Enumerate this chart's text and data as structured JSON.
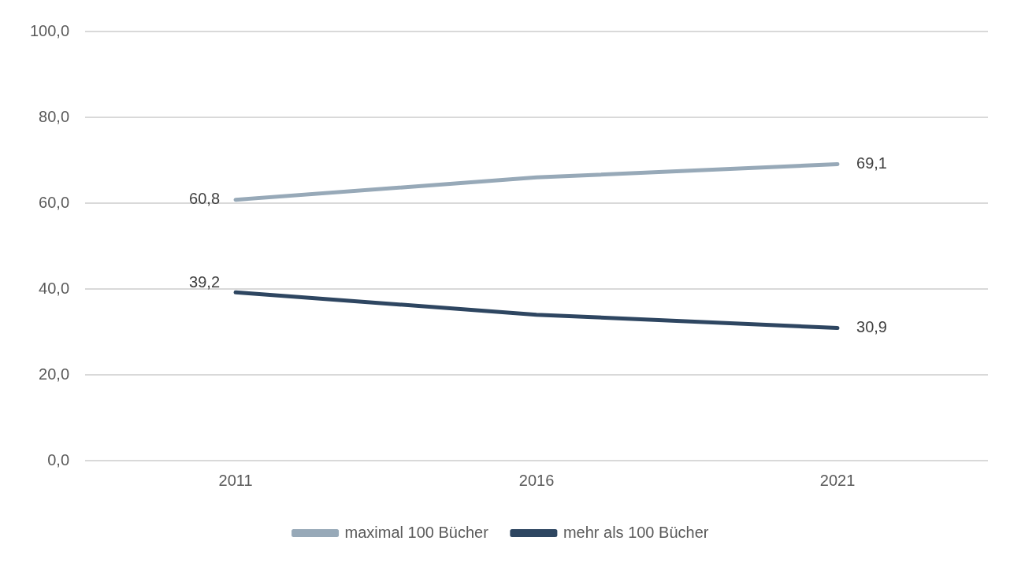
{
  "chart_data": {
    "type": "line",
    "categories": [
      "2011",
      "2016",
      "2021"
    ],
    "series": [
      {
        "name": "maximal 100 Bücher",
        "color": "#97a9b8",
        "values": [
          60.8,
          66.0,
          69.1
        ],
        "value_labels": [
          "60,8",
          null,
          "69,1"
        ]
      },
      {
        "name": "mehr als 100 Bücher",
        "color": "#2e4661",
        "values": [
          39.2,
          34.0,
          30.9
        ],
        "value_labels": [
          "39,2",
          null,
          "30,9"
        ]
      }
    ],
    "ylim": [
      0,
      100
    ],
    "yticks": [
      {
        "value": 0,
        "label": "0,0"
      },
      {
        "value": 20,
        "label": "20,0"
      },
      {
        "value": 40,
        "label": "40,0"
      },
      {
        "value": 60,
        "label": "60,0"
      },
      {
        "value": 80,
        "label": "80,0"
      },
      {
        "value": 100,
        "label": "100,0"
      }
    ],
    "grid": "y",
    "legend": "bottom",
    "marker": "none",
    "line_style": "solid"
  }
}
